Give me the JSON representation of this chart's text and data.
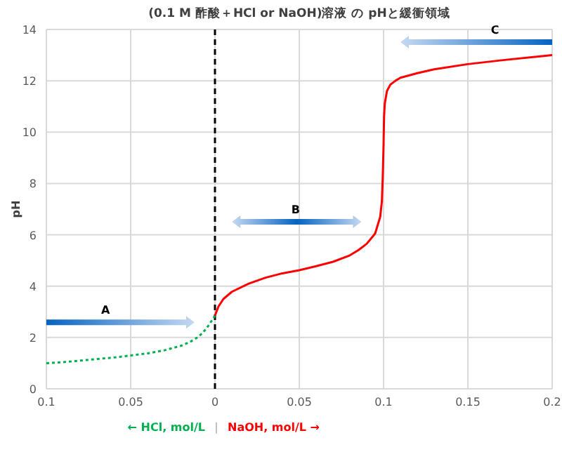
{
  "chart_data": {
    "type": "line",
    "title": "(0.1 M 酢酸＋HCl or NaOH)溶液 の pHと緩衝領域",
    "xlabel": "|",
    "ylabel": "pH",
    "xlim": [
      -0.1,
      0.2
    ],
    "xticks": [
      {
        "value": -0.1,
        "label": "0.1"
      },
      {
        "value": -0.05,
        "label": "0.05"
      },
      0,
      0.05,
      0.1,
      0.15,
      0.2
    ],
    "ylim": [
      0,
      14
    ],
    "yticks": [
      0,
      2,
      4,
      6,
      8,
      10,
      12,
      14
    ],
    "grid": true,
    "legend": "bottom",
    "marker": "none",
    "series": [
      {
        "name": "← HCl, mol/L",
        "color": "#00b050",
        "line_style": "dotted",
        "x": [
          -0.1,
          -0.09,
          -0.08,
          -0.07,
          -0.06,
          -0.05,
          -0.04,
          -0.03,
          -0.02,
          -0.015,
          -0.01,
          -0.007,
          -0.004,
          -0.002,
          0
        ],
        "values": [
          1.0,
          1.04,
          1.1,
          1.16,
          1.22,
          1.3,
          1.38,
          1.5,
          1.68,
          1.82,
          2.02,
          2.2,
          2.45,
          2.65,
          2.85
        ]
      },
      {
        "name": "NaOH, mol/L →",
        "color": "#ff0000",
        "line_style": "solid",
        "x": [
          0,
          0.002,
          0.005,
          0.01,
          0.02,
          0.03,
          0.04,
          0.05,
          0.06,
          0.07,
          0.08,
          0.085,
          0.09,
          0.095,
          0.098,
          0.099,
          0.0995,
          0.1,
          0.1003,
          0.1007,
          0.102,
          0.104,
          0.107,
          0.11,
          0.12,
          0.13,
          0.15,
          0.17,
          0.2
        ],
        "values": [
          2.85,
          3.2,
          3.5,
          3.78,
          4.1,
          4.33,
          4.5,
          4.62,
          4.78,
          4.95,
          5.2,
          5.4,
          5.65,
          6.05,
          6.7,
          7.3,
          8.2,
          9.5,
          10.6,
          11.1,
          11.6,
          11.85,
          12.0,
          12.12,
          12.3,
          12.45,
          12.65,
          12.8,
          13.0
        ]
      }
    ],
    "ref_lines": [
      {
        "axis": "x",
        "value": 0,
        "color": "#000000",
        "line_style": "dashed"
      }
    ],
    "annotations": [
      "A",
      "B",
      "C"
    ]
  }
}
